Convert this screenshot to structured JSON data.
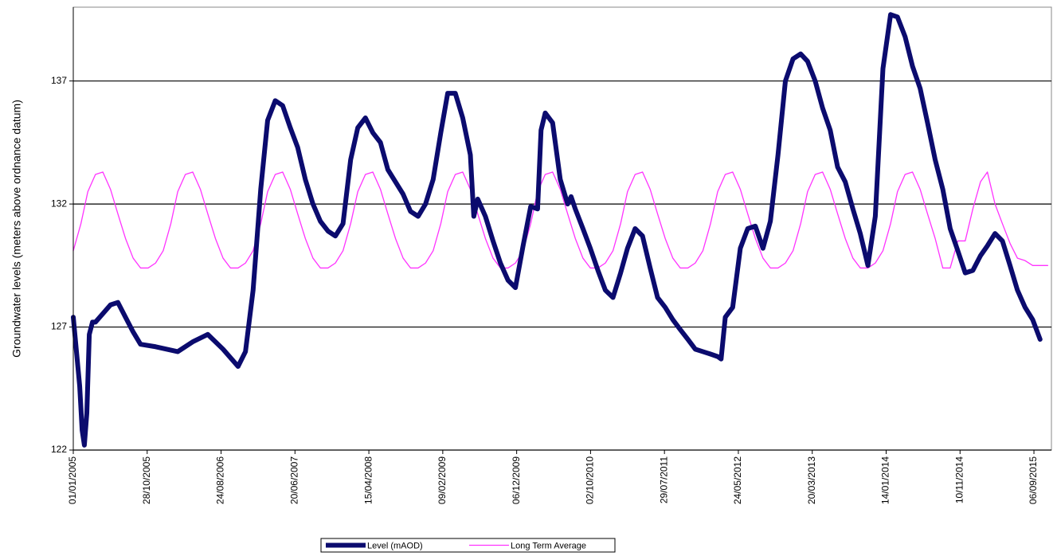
{
  "chart_data": {
    "type": "line",
    "y_label": "Groundwater levels (meters above ordnance datum)",
    "xlim": [
      "01/01/2005",
      "16/11/2015"
    ],
    "xticks": [
      "01/01/2005",
      "28/10/2005",
      "24/08/2006",
      "20/06/2007",
      "15/04/2008",
      "09/02/2009",
      "06/12/2009",
      "02/10/2010",
      "29/07/2011",
      "24/05/2012",
      "20/03/2013",
      "14/01/2014",
      "10/11/2014",
      "06/09/2015"
    ],
    "ylim": [
      122,
      140
    ],
    "yticks": [
      122,
      127,
      132,
      137
    ],
    "grid": true,
    "legend": "bottom",
    "series": [
      {
        "name": "Level (mAOD)",
        "color": "#0b0b6e",
        "width": 6,
        "x": [
          "01/01/2005",
          "14/01/2005",
          "27/01/2005",
          "06/02/2005",
          "15/02/2005",
          "25/02/2005",
          "07/03/2005",
          "20/03/2005",
          "01/04/2005",
          "01/06/2005",
          "01/07/2005",
          "01/08/2005",
          "01/09/2005",
          "01/10/2005",
          "01/12/2005",
          "01/03/2006",
          "01/05/2006",
          "01/07/2006",
          "01/09/2006",
          "01/11/2006",
          "01/12/2006",
          "01/01/2007",
          "01/02/2007",
          "01/03/2007",
          "01/04/2007",
          "01/05/2007",
          "01/06/2007",
          "01/07/2007",
          "01/08/2007",
          "01/09/2007",
          "01/10/2007",
          "01/11/2007",
          "01/12/2007",
          "01/01/2008",
          "01/02/2008",
          "01/03/2008",
          "01/04/2008",
          "01/05/2008",
          "01/06/2008",
          "01/07/2008",
          "01/08/2008",
          "01/09/2008",
          "01/10/2008",
          "01/11/2008",
          "01/12/2008",
          "01/01/2009",
          "01/02/2009",
          "01/03/2009",
          "01/04/2009",
          "01/05/2009",
          "01/06/2009",
          "15/06/2009",
          "01/07/2009",
          "01/08/2009",
          "01/09/2009",
          "01/10/2009",
          "01/11/2009",
          "01/12/2009",
          "01/01/2010",
          "01/02/2010",
          "01/03/2010",
          "15/03/2010",
          "01/04/2010",
          "01/05/2010",
          "01/06/2010",
          "01/07/2010",
          "15/07/2010",
          "01/08/2010",
          "01/09/2010",
          "01/10/2010",
          "01/11/2010",
          "01/12/2010",
          "01/01/2011",
          "01/02/2011",
          "01/03/2011",
          "01/04/2011",
          "01/05/2011",
          "01/06/2011",
          "01/07/2011",
          "01/08/2011",
          "01/09/2011",
          "01/10/2011",
          "01/11/2011",
          "01/12/2011",
          "01/01/2012",
          "01/02/2012",
          "01/03/2012",
          "15/03/2012",
          "01/04/2012",
          "01/05/2012",
          "01/06/2012",
          "01/07/2012",
          "01/08/2012",
          "01/09/2012",
          "01/10/2012",
          "01/11/2012",
          "01/12/2012",
          "01/01/2013",
          "01/02/2013",
          "01/03/2013",
          "01/04/2013",
          "01/05/2013",
          "01/06/2013",
          "01/07/2013",
          "01/08/2013",
          "01/09/2013",
          "01/10/2013",
          "01/11/2013",
          "01/12/2013",
          "01/01/2014",
          "01/02/2014",
          "01/03/2014",
          "01/04/2014",
          "01/05/2014",
          "01/06/2014",
          "01/07/2014",
          "01/08/2014",
          "01/09/2014",
          "01/10/2014",
          "01/11/2014",
          "01/12/2014",
          "01/01/2015",
          "01/02/2015",
          "01/03/2015",
          "01/04/2015",
          "01/05/2015",
          "01/06/2015",
          "01/07/2015",
          "01/08/2015",
          "01/09/2015",
          "01/10/2015"
        ],
        "values": [
          127.4,
          126.0,
          124.6,
          122.8,
          122.2,
          123.5,
          126.7,
          127.2,
          127.2,
          127.9,
          128.0,
          127.4,
          126.8,
          126.3,
          126.2,
          126.0,
          126.4,
          126.7,
          126.1,
          125.4,
          126.0,
          128.5,
          132.6,
          135.4,
          136.2,
          136.0,
          135.1,
          134.3,
          133.0,
          132.0,
          131.3,
          130.9,
          130.7,
          131.2,
          133.8,
          135.1,
          135.5,
          134.9,
          134.5,
          133.4,
          132.9,
          132.4,
          131.7,
          131.5,
          132.0,
          133.0,
          134.9,
          136.5,
          136.5,
          135.5,
          134.0,
          131.5,
          132.2,
          131.5,
          130.5,
          129.6,
          128.9,
          128.6,
          130.3,
          131.9,
          131.8,
          135.0,
          135.7,
          135.3,
          133.0,
          132.0,
          132.3,
          131.8,
          131.0,
          130.2,
          129.3,
          128.5,
          128.2,
          129.2,
          130.2,
          131.0,
          130.7,
          129.4,
          128.2,
          127.8,
          127.3,
          126.9,
          126.5,
          126.1,
          126.0,
          125.9,
          125.8,
          125.7,
          127.4,
          127.8,
          130.2,
          131.0,
          131.1,
          130.2,
          131.3,
          134.0,
          137.0,
          137.9,
          138.1,
          137.8,
          137.0,
          135.9,
          135.0,
          133.5,
          132.9,
          131.8,
          130.8,
          129.5,
          131.5,
          137.5,
          139.7,
          139.6,
          138.8,
          137.6,
          136.7,
          135.3,
          133.8,
          132.6,
          131.0,
          130.1,
          129.2,
          129.3,
          129.9,
          130.3,
          130.8,
          130.5,
          129.5,
          128.5,
          127.8,
          127.3,
          126.5
        ]
      },
      {
        "name": "Long Term Average",
        "color": "#ff33ff",
        "width": 1.3,
        "x": [
          "01/01/2005",
          "01/02/2005",
          "01/03/2005",
          "01/04/2005",
          "01/05/2005",
          "01/06/2005",
          "01/07/2005",
          "01/08/2005",
          "01/09/2005",
          "01/10/2005",
          "01/11/2005",
          "01/12/2005",
          "01/01/2006",
          "01/02/2006",
          "01/03/2006",
          "01/04/2006",
          "01/05/2006",
          "01/06/2006",
          "01/07/2006",
          "01/08/2006",
          "01/09/2006",
          "01/10/2006",
          "01/11/2006",
          "01/12/2006",
          "01/01/2007",
          "01/02/2007",
          "01/03/2007",
          "01/04/2007",
          "01/05/2007",
          "01/06/2007",
          "01/07/2007",
          "01/08/2007",
          "01/09/2007",
          "01/10/2007",
          "01/11/2007",
          "01/12/2007",
          "01/01/2008",
          "01/02/2008",
          "01/03/2008",
          "01/04/2008",
          "01/05/2008",
          "01/06/2008",
          "01/07/2008",
          "01/08/2008",
          "01/09/2008",
          "01/10/2008",
          "01/11/2008",
          "01/12/2008",
          "01/01/2009",
          "01/02/2009",
          "01/03/2009",
          "01/04/2009",
          "01/05/2009",
          "01/06/2009",
          "01/07/2009",
          "01/08/2009",
          "01/09/2009",
          "01/10/2009",
          "01/11/2009",
          "01/12/2009",
          "01/01/2010",
          "01/02/2010",
          "01/03/2010",
          "01/04/2010",
          "01/05/2010",
          "01/06/2010",
          "01/07/2010",
          "01/08/2010",
          "01/09/2010",
          "01/10/2010",
          "01/11/2010",
          "01/12/2010",
          "01/01/2011",
          "01/02/2011",
          "01/03/2011",
          "01/04/2011",
          "01/05/2011",
          "01/06/2011",
          "01/07/2011",
          "01/08/2011",
          "01/09/2011",
          "01/10/2011",
          "01/11/2011",
          "01/12/2011",
          "01/01/2012",
          "01/02/2012",
          "01/03/2012",
          "01/04/2012",
          "01/05/2012",
          "01/06/2012",
          "01/07/2012",
          "01/08/2012",
          "01/09/2012",
          "01/10/2012",
          "01/11/2012",
          "01/12/2012",
          "01/01/2013",
          "01/02/2013",
          "01/03/2013",
          "01/04/2013",
          "01/05/2013",
          "01/06/2013",
          "01/07/2013",
          "01/08/2013",
          "01/09/2013",
          "01/10/2013",
          "01/11/2013",
          "01/12/2013",
          "01/01/2014",
          "01/02/2014",
          "01/03/2014",
          "01/04/2014",
          "01/05/2014",
          "01/06/2014",
          "01/07/2014",
          "01/08/2014",
          "01/09/2014",
          "01/10/2014",
          "01/11/2014",
          "01/12/2014",
          "01/01/2015",
          "01/02/2015",
          "01/03/2015",
          "01/04/2015",
          "01/05/2015",
          "01/06/2015",
          "01/07/2015",
          "01/08/2015",
          "01/09/2015",
          "01/10/2015",
          "01/11/2015"
        ],
        "values": [
          130.1,
          131.2,
          132.5,
          133.2,
          133.3,
          132.6,
          131.6,
          130.6,
          129.8,
          129.4,
          129.4,
          129.6,
          130.1,
          131.2,
          132.5,
          133.2,
          133.3,
          132.6,
          131.6,
          130.6,
          129.8,
          129.4,
          129.4,
          129.6,
          130.1,
          131.2,
          132.5,
          133.2,
          133.3,
          132.6,
          131.6,
          130.6,
          129.8,
          129.4,
          129.4,
          129.6,
          130.1,
          131.2,
          132.5,
          133.2,
          133.3,
          132.6,
          131.6,
          130.6,
          129.8,
          129.4,
          129.4,
          129.6,
          130.1,
          131.2,
          132.5,
          133.2,
          133.3,
          132.6,
          131.6,
          130.6,
          129.8,
          129.4,
          129.4,
          129.6,
          130.1,
          131.2,
          132.5,
          133.2,
          133.3,
          132.6,
          131.6,
          130.6,
          129.8,
          129.4,
          129.4,
          129.6,
          130.1,
          131.2,
          132.5,
          133.2,
          133.3,
          132.6,
          131.6,
          130.6,
          129.8,
          129.4,
          129.4,
          129.6,
          130.1,
          131.2,
          132.5,
          133.2,
          133.3,
          132.6,
          131.6,
          130.6,
          129.8,
          129.4,
          129.4,
          129.6,
          130.1,
          131.2,
          132.5,
          133.2,
          133.3,
          132.6,
          131.6,
          130.6,
          129.8,
          129.4,
          129.4,
          129.6,
          130.1,
          131.2,
          132.5,
          133.2,
          133.3,
          132.6,
          131.6,
          130.6,
          129.4,
          129.4,
          130.5,
          130.5,
          131.8,
          132.9,
          133.3,
          132.0,
          131.2,
          130.4,
          129.8,
          129.7,
          129.5,
          129.5,
          129.5
        ]
      }
    ]
  }
}
